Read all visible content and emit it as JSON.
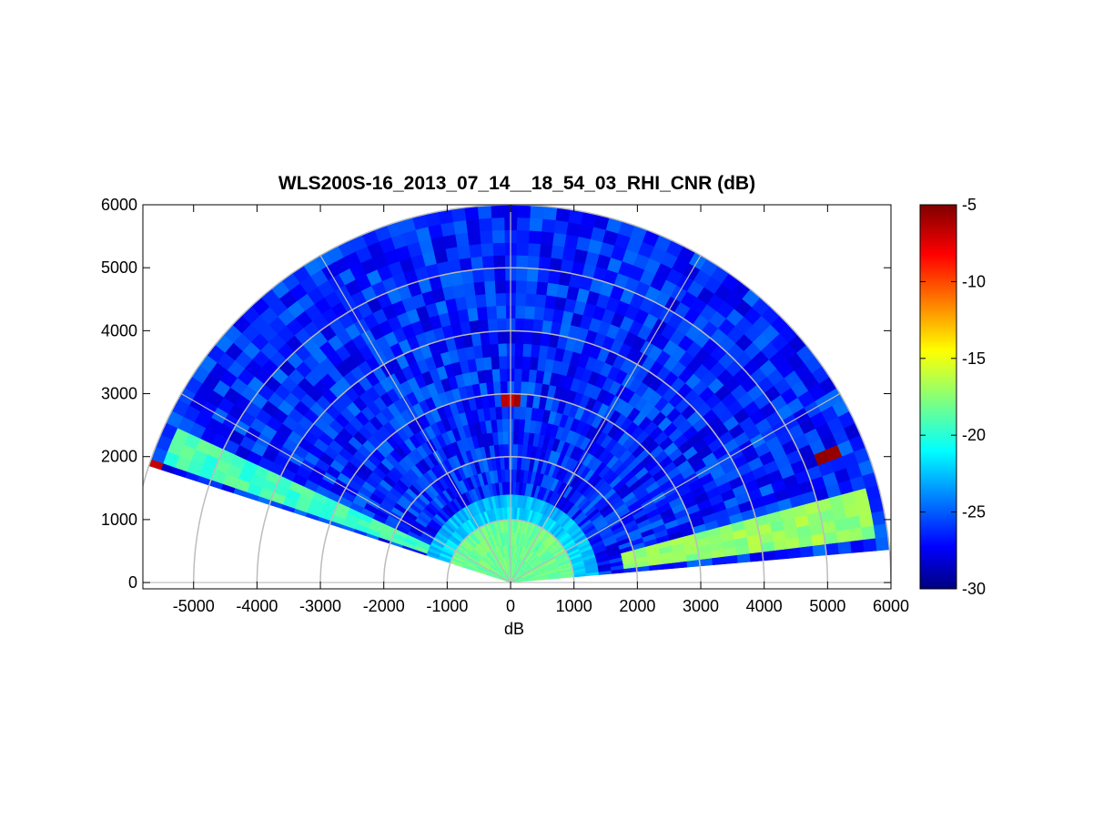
{
  "chart_data": {
    "type": "heatmap",
    "title": "WLS200S-16_2013_07_14__18_54_03_RHI_CNR (dB)",
    "xlabel": "dB",
    "ylabel": "",
    "xlim": [
      -5800,
      6000
    ],
    "ylim": [
      -100,
      6000
    ],
    "x_ticks": [
      -5000,
      -4000,
      -3000,
      -2000,
      -1000,
      0,
      1000,
      2000,
      3000,
      4000,
      5000,
      6000
    ],
    "y_ticks": [
      0,
      1000,
      2000,
      3000,
      4000,
      5000,
      6000
    ],
    "grid": true,
    "polar_grid": {
      "range_rings": [
        1000,
        2000,
        3000,
        4000,
        5000,
        6000
      ],
      "spokes_deg": [
        0,
        30,
        60,
        90,
        120,
        150,
        180
      ]
    },
    "scan": {
      "elevation_min_deg": 5,
      "elevation_max_deg": 162,
      "max_range": 6000
    },
    "colorbar": {
      "label": "",
      "range": [
        -30,
        -5
      ],
      "ticks": [
        -5,
        -10,
        -15,
        -20,
        -25,
        -30
      ],
      "colormap": "jet"
    },
    "features": [
      {
        "desc": "near-range high signal",
        "range_max": 900,
        "value": -18
      },
      {
        "desc": "low elevation aerosol band",
        "elev_deg": [
          8,
          14
        ],
        "range": [
          1800,
          5800
        ],
        "value": -17
      },
      {
        "desc": "low elevation aerosol band left",
        "elev_deg": [
          155,
          161
        ],
        "range": [
          1500,
          5800
        ],
        "value": -19
      },
      {
        "desc": "strong return at zenith",
        "elev_deg": [
          88,
          92
        ],
        "range": [
          2850,
          3000
        ],
        "value": -6
      },
      {
        "desc": "strong return east",
        "elev_deg": [
          21,
          23
        ],
        "range": [
          5300,
          5500
        ],
        "value": -5
      },
      {
        "desc": "strong return west edge",
        "elev_deg": [
          161,
          162
        ],
        "range": [
          5900,
          6000
        ],
        "value": -6
      }
    ]
  }
}
